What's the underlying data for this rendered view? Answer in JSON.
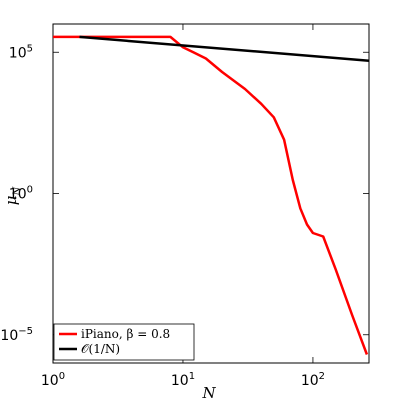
{
  "chart_data": {
    "type": "line",
    "xscale": "log",
    "yscale": "log",
    "xlim": [
      1,
      270
    ],
    "ylim": [
      1e-06,
      1000000
    ],
    "xticks": [
      {
        "value": 1,
        "base": "10",
        "exp": "0"
      },
      {
        "value": 10,
        "base": "10",
        "exp": "1"
      },
      {
        "value": 100,
        "base": "10",
        "exp": "2"
      }
    ],
    "yticks": [
      {
        "value": 1e-05,
        "base": "10",
        "exp": "−5"
      },
      {
        "value": 1,
        "base": "10",
        "exp": "0"
      },
      {
        "value": 100000,
        "base": "10",
        "exp": "5"
      }
    ],
    "xlabel": "N",
    "ylabel": "μ",
    "ylabel_sub": "N",
    "legend_position": "bottom-left",
    "series": [
      {
        "name": "iPiano, β = 0.8",
        "color": "#ff0000",
        "x": [
          1,
          8,
          10,
          12,
          15,
          20,
          30,
          40,
          50,
          60,
          70,
          80,
          90,
          100,
          120,
          150,
          200,
          260
        ],
        "y": [
          350000,
          350000,
          150000,
          100000,
          60000,
          20000,
          5000,
          1500,
          500,
          80,
          3,
          0.3,
          0.08,
          0.04,
          0.03,
          0.002,
          5e-05,
          2e-06
        ]
      },
      {
        "name": "𝒪(1/N)",
        "color": "#000000",
        "x": [
          1.6,
          270
        ],
        "y": [
          350000,
          50000
        ]
      }
    ]
  }
}
